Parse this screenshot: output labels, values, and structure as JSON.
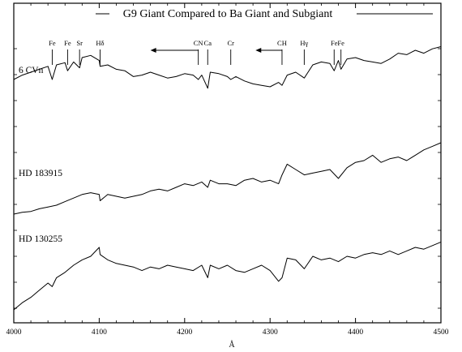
{
  "chart_data": {
    "type": "line",
    "title": "G9 Giant Compared to Ba Giant and Subgiant",
    "xlabel": "Å",
    "ylabel": "",
    "xlim": [
      4000,
      4500
    ],
    "x_ticks": [
      4000,
      4100,
      4200,
      4300,
      4400,
      4500
    ],
    "x_tick_labels": [
      "4000",
      "4100",
      "4200",
      "4300",
      "4400",
      "4500"
    ],
    "y_ticks": "unlabeled",
    "line_markers": [
      {
        "label": "Fe",
        "x": 4045
      },
      {
        "label": "Fe",
        "x": 4063
      },
      {
        "label": "Sr",
        "x": 4077
      },
      {
        "label": "Hδ",
        "x": 4101
      },
      {
        "label": "CN",
        "x": 4216,
        "arrow": "left",
        "arrow_to": 4160
      },
      {
        "label": "Ca",
        "x": 4227
      },
      {
        "label": "Cr",
        "x": 4254
      },
      {
        "label": "CH",
        "x": 4314,
        "arrow": "left",
        "arrow_to": 4283
      },
      {
        "label": "Hγ",
        "x": 4340
      },
      {
        "label": "Fe",
        "x": 4375
      },
      {
        "label": "Fe",
        "x": 4383
      }
    ],
    "series": [
      {
        "name": "6 CVn",
        "x": [
          4000,
          4010,
          4020,
          4030,
          4040,
          4045,
          4050,
          4060,
          4063,
          4070,
          4077,
          4080,
          4090,
          4100,
          4101,
          4110,
          4120,
          4130,
          4140,
          4150,
          4160,
          4170,
          4180,
          4190,
          4200,
          4210,
          4216,
          4220,
          4227,
          4230,
          4240,
          4250,
          4254,
          4260,
          4270,
          4280,
          4290,
          4300,
          4310,
          4314,
          4320,
          4330,
          4340,
          4350,
          4360,
          4370,
          4375,
          4380,
          4383,
          4390,
          4400,
          4410,
          4420,
          4430,
          4440,
          4450,
          4460,
          4470,
          4480,
          4490,
          4500
        ],
        "y": [
          0.6,
          0.66,
          0.7,
          0.74,
          0.78,
          0.6,
          0.8,
          0.83,
          0.72,
          0.84,
          0.76,
          0.9,
          0.93,
          0.86,
          0.78,
          0.8,
          0.74,
          0.72,
          0.64,
          0.66,
          0.7,
          0.66,
          0.62,
          0.64,
          0.68,
          0.66,
          0.6,
          0.66,
          0.48,
          0.7,
          0.68,
          0.64,
          0.6,
          0.64,
          0.58,
          0.54,
          0.52,
          0.5,
          0.56,
          0.52,
          0.66,
          0.7,
          0.62,
          0.8,
          0.84,
          0.82,
          0.72,
          0.86,
          0.74,
          0.88,
          0.9,
          0.86,
          0.84,
          0.82,
          0.88,
          0.96,
          0.94,
          1.0,
          0.96,
          1.02,
          1.05
        ]
      },
      {
        "name": "HD 183915",
        "x": [
          4000,
          4010,
          4020,
          4030,
          4040,
          4050,
          4060,
          4070,
          4080,
          4090,
          4100,
          4101,
          4110,
          4120,
          4130,
          4140,
          4150,
          4160,
          4170,
          4180,
          4190,
          4200,
          4210,
          4220,
          4227,
          4230,
          4240,
          4250,
          4260,
          4270,
          4280,
          4290,
          4300,
          4310,
          4314,
          4320,
          4330,
          4340,
          4350,
          4360,
          4370,
          4380,
          4390,
          4400,
          4410,
          4420,
          4430,
          4440,
          4450,
          4460,
          4470,
          4480,
          4490,
          4500
        ],
        "y": [
          0.0,
          0.02,
          0.03,
          0.06,
          0.08,
          0.1,
          0.14,
          0.18,
          0.22,
          0.24,
          0.22,
          0.15,
          0.22,
          0.2,
          0.18,
          0.2,
          0.22,
          0.26,
          0.28,
          0.26,
          0.3,
          0.34,
          0.32,
          0.36,
          0.3,
          0.38,
          0.34,
          0.34,
          0.32,
          0.38,
          0.4,
          0.36,
          0.38,
          0.34,
          0.44,
          0.56,
          0.5,
          0.44,
          0.46,
          0.48,
          0.5,
          0.4,
          0.52,
          0.58,
          0.6,
          0.66,
          0.58,
          0.62,
          0.64,
          0.6,
          0.66,
          0.72,
          0.76,
          0.8
        ]
      },
      {
        "name": "HD 130255",
        "x": [
          4000,
          4010,
          4020,
          4030,
          4040,
          4045,
          4050,
          4060,
          4070,
          4080,
          4090,
          4100,
          4101,
          4110,
          4120,
          4130,
          4140,
          4150,
          4160,
          4170,
          4180,
          4190,
          4200,
          4210,
          4220,
          4227,
          4230,
          4240,
          4250,
          4260,
          4270,
          4280,
          4290,
          4300,
          4310,
          4314,
          4320,
          4330,
          4340,
          4350,
          4360,
          4370,
          4380,
          4390,
          4400,
          4410,
          4420,
          4430,
          4440,
          4450,
          4460,
          4470,
          4480,
          4490,
          4500
        ],
        "y": [
          0.0,
          0.08,
          0.14,
          0.22,
          0.3,
          0.26,
          0.36,
          0.42,
          0.5,
          0.56,
          0.6,
          0.7,
          0.62,
          0.56,
          0.52,
          0.5,
          0.48,
          0.44,
          0.48,
          0.46,
          0.5,
          0.48,
          0.46,
          0.44,
          0.5,
          0.36,
          0.5,
          0.46,
          0.5,
          0.44,
          0.42,
          0.46,
          0.5,
          0.44,
          0.32,
          0.36,
          0.58,
          0.56,
          0.46,
          0.6,
          0.56,
          0.58,
          0.54,
          0.6,
          0.58,
          0.62,
          0.64,
          0.62,
          0.66,
          0.62,
          0.66,
          0.7,
          0.68,
          0.72,
          0.76
        ]
      }
    ]
  }
}
